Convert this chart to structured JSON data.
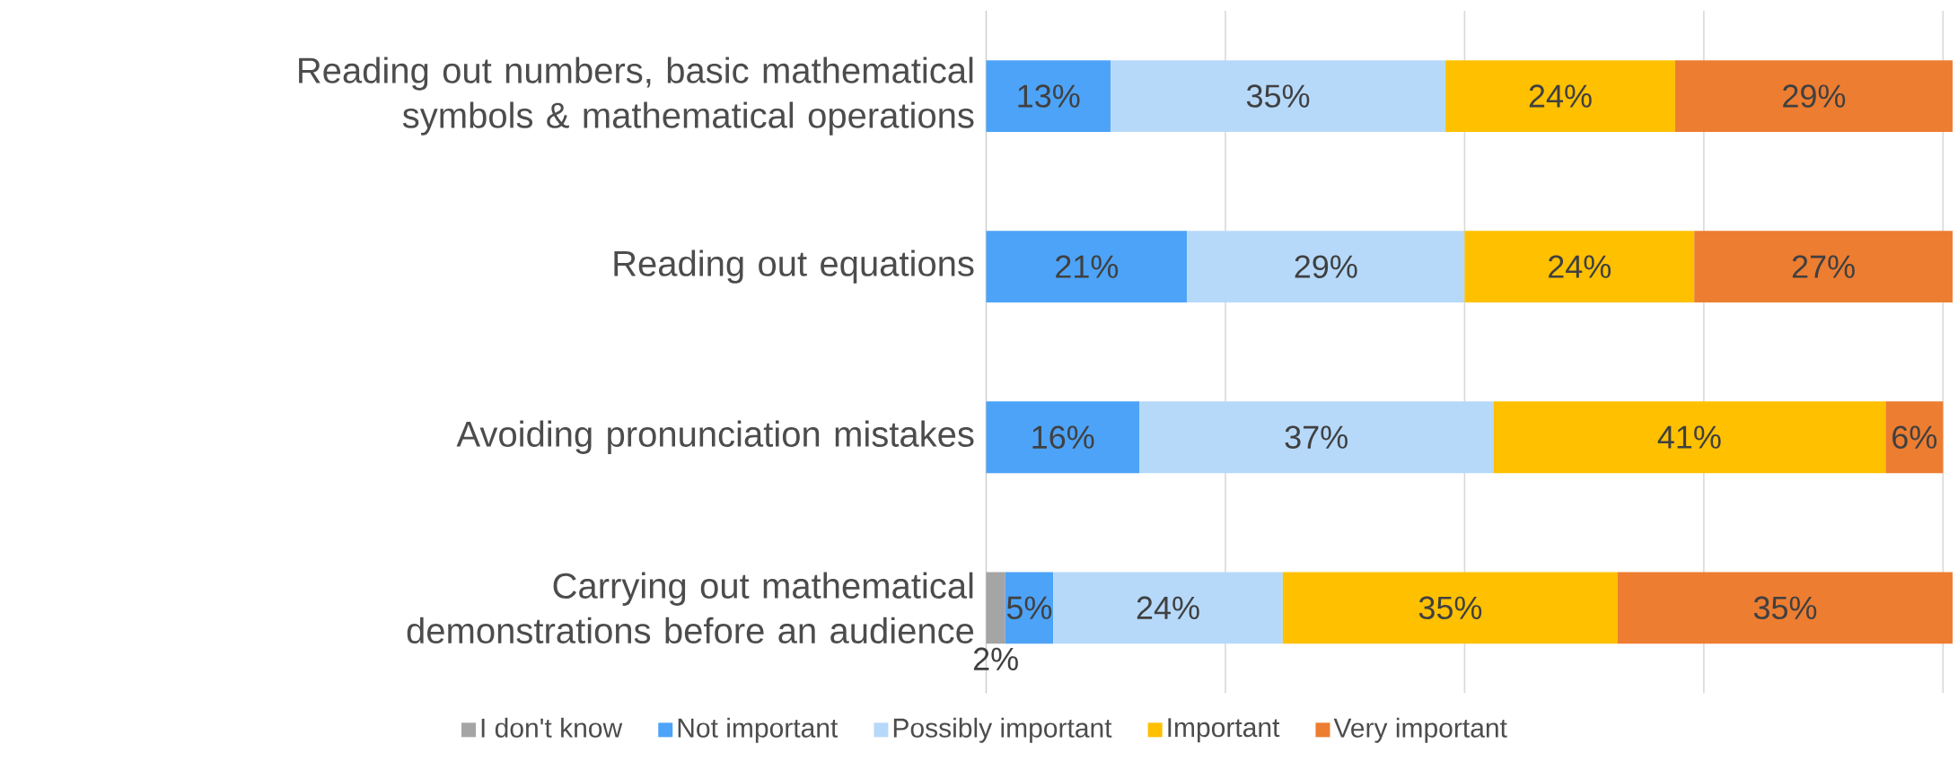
{
  "chart_data": {
    "type": "bar",
    "orientation": "horizontal",
    "stacked": true,
    "categories": [
      "Reading out numbers, basic mathematical symbols & mathematical operations",
      "Reading out equations",
      "Avoiding pronunciation mistakes",
      "Carrying out mathematical demonstrations before an audience"
    ],
    "series": [
      {
        "name": "I don't know",
        "color": "#a5a5a5",
        "values": [
          null,
          null,
          null,
          2
        ],
        "value_labels": [
          null,
          null,
          null,
          "2%"
        ]
      },
      {
        "name": "Not important",
        "color": "#4da3f7",
        "values": [
          13,
          21,
          16,
          5
        ],
        "value_labels": [
          "13%",
          "21%",
          "16%",
          "5%"
        ]
      },
      {
        "name": "Possibly important",
        "color": "#b6d9fa",
        "values": [
          35,
          29,
          37,
          24
        ],
        "value_labels": [
          "35%",
          "29%",
          "37%",
          "24%"
        ]
      },
      {
        "name": "Important",
        "color": "#ffc000",
        "values": [
          24,
          24,
          41,
          35
        ],
        "value_labels": [
          "24%",
          "24%",
          "41%",
          "35%"
        ]
      },
      {
        "name": "Very important",
        "color": "#ed7d31",
        "values": [
          29,
          27,
          6,
          35
        ],
        "value_labels": [
          "29%",
          "27%",
          "6%",
          "35%"
        ]
      }
    ],
    "xlim": [
      0,
      101
    ],
    "xticks": [
      {
        "value": 0,
        "label": null
      },
      {
        "value": 25,
        "label": null
      },
      {
        "value": 50,
        "label": null
      },
      {
        "value": 75,
        "label": null
      },
      {
        "value": 100,
        "label": null
      }
    ],
    "grid": "x",
    "legend": "bottom",
    "tick_labels": "y"
  }
}
